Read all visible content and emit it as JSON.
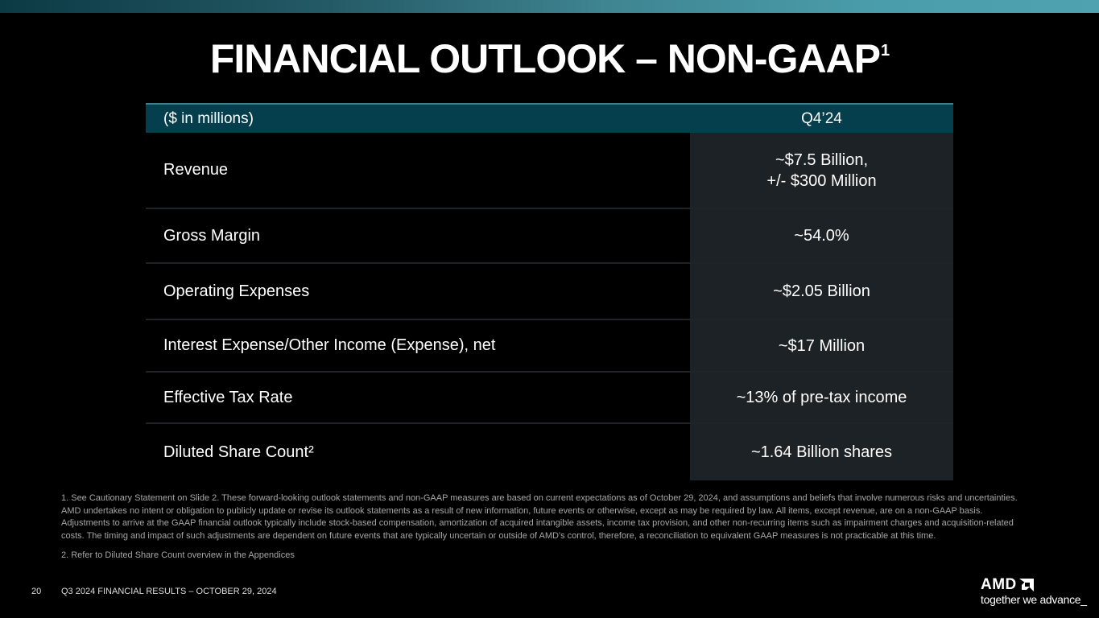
{
  "title": "FINANCIAL OUTLOOK – NON-GAAP",
  "title_sup": "1",
  "table": {
    "header": [
      "($ in millions)",
      "Q4’24"
    ],
    "rows": [
      {
        "label": "Revenue",
        "value_line1": "~$7.5 Billion,",
        "value_line2": "+/- $300 Million"
      },
      {
        "label": "Gross Margin",
        "value_line1": "~54.0%"
      },
      {
        "label": "Operating Expenses",
        "value_line1": "~$2.05 Billion"
      },
      {
        "label": "Interest Expense/Other Income (Expense), net",
        "value_line1": "~$17 Million"
      },
      {
        "label": "Effective Tax Rate",
        "value_line1": "~13% of pre-tax income"
      },
      {
        "label": "Diluted Share Count²",
        "value_line1": "~1.64 Billion shares"
      }
    ]
  },
  "footnotes": [
    "1.  See Cautionary Statement on Slide 2. These forward-looking outlook statements and non-GAAP measures are based on current expectations as of October 29, 2024, and assumptions and beliefs that involve numerous risks and uncertainties. AMD undertakes no intent or obligation to publicly update or revise its outlook statements as a result of new information, future events or otherwise, except as may be required by law. All items, except revenue, are on a non-GAAP basis. Adjustments to arrive at the GAAP financial outlook typically include stock-based compensation, amortization of acquired intangible assets, income tax provision, and other non-recurring items such as impairment charges and acquisition-related costs. The timing and impact of such adjustments are dependent on future events that are typically uncertain or outside of AMD's control, therefore, a reconciliation to equivalent GAAP measures is not practicable at this time.",
    "2.  Refer to Diluted Share Count overview in the Appendices"
  ],
  "footer": {
    "page_number": "20",
    "text": "Q3 2024 FINANCIAL RESULTS – OCTOBER 29, 2024"
  },
  "logo": {
    "brand": "AMD",
    "tagline": "together we advance_"
  },
  "colors": {
    "header_bg": "#053f4d",
    "value_col_bg": "#1c2225",
    "accent_bar_start": "#0c3a44",
    "accent_bar_end": "#4fa3b1"
  }
}
